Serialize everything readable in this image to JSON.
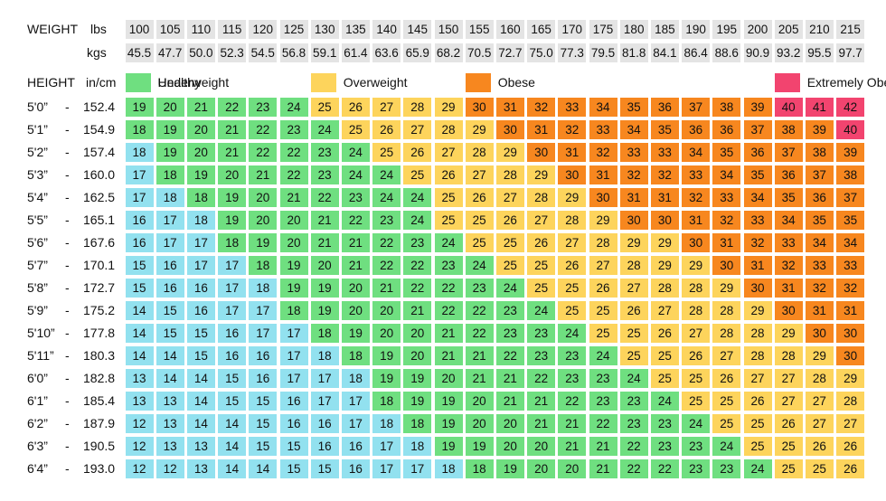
{
  "header": {
    "weight_label": "WEIGHT",
    "lbs_label": "lbs",
    "kgs_label": "kgs",
    "height_label": "HEIGHT",
    "height_units": "in/cm",
    "separator": "-"
  },
  "lbs": [
    100,
    105,
    110,
    115,
    120,
    125,
    130,
    135,
    140,
    145,
    150,
    155,
    160,
    165,
    170,
    175,
    180,
    185,
    190,
    195,
    200,
    205,
    210,
    215
  ],
  "kgs": [
    "45.5",
    "47.7",
    "50.0",
    "52.3",
    "54.5",
    "56.8",
    "59.1",
    "61.4",
    "63.6",
    "65.9",
    "68.2",
    "70.5",
    "72.7",
    "75.0",
    "77.3",
    "79.5",
    "81.8",
    "84.1",
    "86.4",
    "88.6",
    "90.9",
    "93.2",
    "95.5",
    "97.7"
  ],
  "legend": [
    {
      "label": "Underweight",
      "color": "#92e1ef"
    },
    {
      "label": "Healthy",
      "color": "#6fdf80"
    },
    {
      "label": "Overweight",
      "color": "#fdd45c"
    },
    {
      "label": "Obese",
      "color": "#f7871f"
    },
    {
      "label": "Extremely Obese",
      "color": "#f2446f"
    }
  ],
  "rows": [
    {
      "ft": "5'0”",
      "cm": "152.4",
      "bmi": [
        19,
        20,
        21,
        22,
        23,
        24,
        25,
        26,
        27,
        28,
        29,
        30,
        31,
        32,
        33,
        34,
        35,
        36,
        37,
        38,
        39,
        40,
        41,
        42
      ],
      "category_starts": [
        0,
        0,
        6,
        11,
        21
      ]
    },
    {
      "ft": "5'1”",
      "cm": "154.9",
      "bmi": [
        18,
        19,
        20,
        21,
        22,
        23,
        24,
        25,
        26,
        27,
        28,
        29,
        30,
        31,
        32,
        33,
        34,
        35,
        36,
        36,
        37,
        38,
        39,
        40
      ],
      "category_starts": [
        0,
        0,
        7,
        12,
        23
      ]
    },
    {
      "ft": "5'2”",
      "cm": "157.4",
      "bmi": [
        18,
        19,
        20,
        21,
        22,
        22,
        23,
        24,
        25,
        26,
        27,
        28,
        29,
        30,
        31,
        32,
        33,
        33,
        34,
        35,
        36,
        37,
        38,
        39
      ],
      "category_starts": [
        0,
        1,
        8,
        13,
        24
      ]
    },
    {
      "ft": "5'3”",
      "cm": "160.0",
      "bmi": [
        17,
        18,
        19,
        20,
        21,
        22,
        23,
        24,
        24,
        25,
        26,
        27,
        28,
        29,
        30,
        31,
        32,
        32,
        33,
        34,
        35,
        36,
        37,
        38
      ],
      "category_starts": [
        0,
        1,
        9,
        14,
        24
      ]
    },
    {
      "ft": "5'4”",
      "cm": "162.5",
      "bmi": [
        17,
        18,
        18,
        19,
        20,
        21,
        22,
        23,
        24,
        24,
        25,
        26,
        27,
        28,
        29,
        30,
        31,
        31,
        32,
        33,
        34,
        35,
        36,
        37
      ],
      "category_starts": [
        0,
        2,
        10,
        15,
        24
      ]
    },
    {
      "ft": "5'5”",
      "cm": "165.1",
      "bmi": [
        16,
        17,
        18,
        19,
        20,
        20,
        21,
        22,
        23,
        24,
        25,
        25,
        26,
        27,
        28,
        29,
        30,
        30,
        31,
        32,
        33,
        34,
        35,
        35
      ],
      "category_starts": [
        0,
        3,
        10,
        16,
        24
      ]
    },
    {
      "ft": "5'6”",
      "cm": "167.6",
      "bmi": [
        16,
        17,
        17,
        18,
        19,
        20,
        21,
        21,
        22,
        23,
        24,
        25,
        25,
        26,
        27,
        28,
        29,
        29,
        30,
        31,
        32,
        33,
        34,
        34
      ],
      "category_starts": [
        0,
        3,
        11,
        18,
        24
      ]
    },
    {
      "ft": "5'7”",
      "cm": "170.1",
      "bmi": [
        15,
        16,
        17,
        17,
        18,
        19,
        20,
        21,
        22,
        22,
        23,
        24,
        25,
        25,
        26,
        27,
        28,
        29,
        29,
        30,
        31,
        32,
        33,
        33
      ],
      "category_starts": [
        0,
        4,
        12,
        19,
        24
      ]
    },
    {
      "ft": "5'8”",
      "cm": "172.7",
      "bmi": [
        15,
        16,
        16,
        17,
        18,
        19,
        19,
        20,
        21,
        22,
        22,
        23,
        24,
        25,
        25,
        26,
        27,
        28,
        28,
        29,
        30,
        31,
        32,
        32
      ],
      "category_starts": [
        0,
        5,
        13,
        20,
        24
      ]
    },
    {
      "ft": "5'9”",
      "cm": "175.2",
      "bmi": [
        14,
        15,
        16,
        17,
        17,
        18,
        19,
        20,
        20,
        21,
        22,
        22,
        23,
        24,
        25,
        25,
        26,
        27,
        28,
        28,
        29,
        30,
        31,
        31
      ],
      "category_starts": [
        0,
        5,
        14,
        21,
        24
      ]
    },
    {
      "ft": "5'10”",
      "cm": "177.8",
      "bmi": [
        14,
        15,
        15,
        16,
        17,
        17,
        18,
        19,
        20,
        20,
        21,
        22,
        23,
        23,
        24,
        25,
        25,
        26,
        27,
        28,
        28,
        29,
        30,
        30
      ],
      "category_starts": [
        0,
        6,
        15,
        22,
        24
      ]
    },
    {
      "ft": "5'11”",
      "cm": "180.3",
      "bmi": [
        14,
        14,
        15,
        16,
        16,
        17,
        18,
        18,
        19,
        20,
        21,
        21,
        22,
        23,
        23,
        24,
        25,
        25,
        26,
        27,
        28,
        28,
        29,
        30
      ],
      "category_starts": [
        0,
        7,
        16,
        23,
        24
      ]
    },
    {
      "ft": "6'0”",
      "cm": "182.8",
      "bmi": [
        13,
        14,
        14,
        15,
        16,
        17,
        17,
        18,
        19,
        19,
        20,
        21,
        21,
        22,
        23,
        23,
        24,
        25,
        25,
        26,
        27,
        27,
        28,
        29
      ],
      "category_starts": [
        0,
        8,
        17,
        24,
        24
      ]
    },
    {
      "ft": "6'1”",
      "cm": "185.4",
      "bmi": [
        13,
        13,
        14,
        15,
        15,
        16,
        17,
        17,
        18,
        19,
        19,
        20,
        21,
        21,
        22,
        23,
        23,
        24,
        25,
        25,
        26,
        27,
        27,
        28
      ],
      "category_starts": [
        0,
        8,
        18,
        24,
        24
      ]
    },
    {
      "ft": "6'2”",
      "cm": "187.9",
      "bmi": [
        12,
        13,
        14,
        14,
        15,
        16,
        16,
        17,
        18,
        18,
        19,
        20,
        20,
        21,
        21,
        22,
        23,
        23,
        24,
        25,
        25,
        26,
        27,
        27
      ],
      "category_starts": [
        0,
        9,
        19,
        24,
        24
      ]
    },
    {
      "ft": "6'3”",
      "cm": "190.5",
      "bmi": [
        12,
        13,
        13,
        14,
        15,
        15,
        16,
        16,
        17,
        18,
        19,
        19,
        20,
        20,
        21,
        21,
        22,
        23,
        23,
        24,
        25,
        25,
        26,
        26
      ],
      "category_starts": [
        0,
        10,
        20,
        24,
        24
      ]
    },
    {
      "ft": "6'4”",
      "cm": "193.0",
      "bmi": [
        12,
        12,
        13,
        14,
        14,
        15,
        15,
        16,
        17,
        17,
        18,
        18,
        19,
        20,
        20,
        21,
        22,
        22,
        23,
        23,
        24,
        25,
        25,
        26
      ],
      "category_starts": [
        0,
        11,
        21,
        24,
        24
      ]
    }
  ]
}
